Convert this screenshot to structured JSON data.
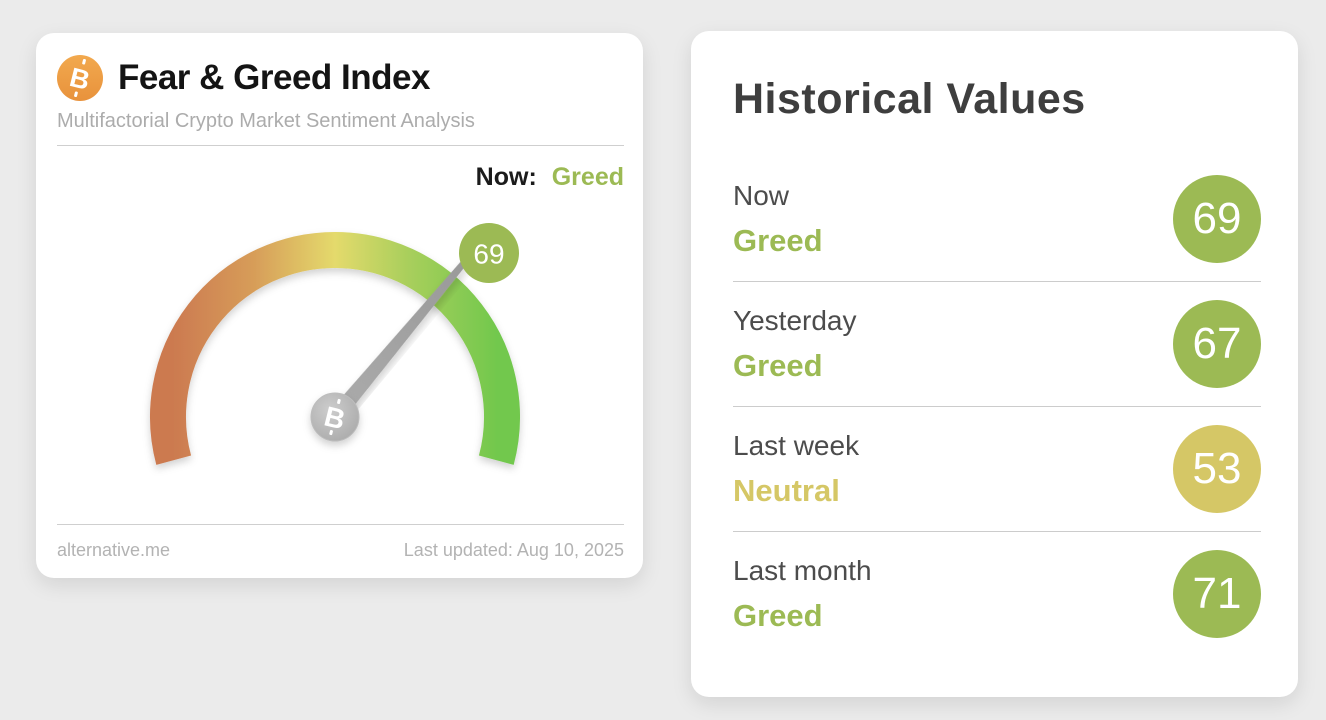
{
  "colors": {
    "greed": "#9cba54",
    "neutral": "#d5c766",
    "bitcoin_orange": "#ee9c41",
    "page_background": "#ebebeb"
  },
  "widget": {
    "icon": "bitcoin-icon",
    "title": "Fear & Greed Index",
    "subtitle": "Multifactorial Crypto Market Sentiment Analysis",
    "now_label": "Now:",
    "now_sentiment": "Greed",
    "gauge": {
      "value": 69,
      "min": 0,
      "max": 100,
      "badge_value": "69",
      "arc_colors": [
        "#cc7a50",
        "#d79d59",
        "#e4da6c",
        "#aacf5c",
        "#72c84d"
      ]
    },
    "footer": {
      "source": "alternative.me",
      "last_updated": "Last updated: Aug 10, 2025"
    }
  },
  "historical": {
    "title": "Historical Values",
    "rows": [
      {
        "label": "Now",
        "sentiment": "Greed",
        "value": "69",
        "color": "#9cba54"
      },
      {
        "label": "Yesterday",
        "sentiment": "Greed",
        "value": "67",
        "color": "#9cba54"
      },
      {
        "label": "Last week",
        "sentiment": "Neutral",
        "value": "53",
        "color": "#d5c766"
      },
      {
        "label": "Last month",
        "sentiment": "Greed",
        "value": "71",
        "color": "#9cba54"
      }
    ]
  },
  "chart_data": {
    "type": "gauge",
    "title": "Fear & Greed Index",
    "subtitle": "Multifactorial Crypto Market Sentiment Analysis",
    "value": 69,
    "sentiment": "Greed",
    "range": [
      0,
      100
    ],
    "scale_colors": [
      "#cc7a50",
      "#d79d59",
      "#e4da6c",
      "#aacf5c",
      "#72c84d"
    ],
    "last_updated": "Aug 10, 2025",
    "source": "alternative.me",
    "historical": [
      {
        "label": "Now",
        "sentiment": "Greed",
        "value": 69
      },
      {
        "label": "Yesterday",
        "sentiment": "Greed",
        "value": 67
      },
      {
        "label": "Last week",
        "sentiment": "Neutral",
        "value": 53
      },
      {
        "label": "Last month",
        "sentiment": "Greed",
        "value": 71
      }
    ]
  }
}
